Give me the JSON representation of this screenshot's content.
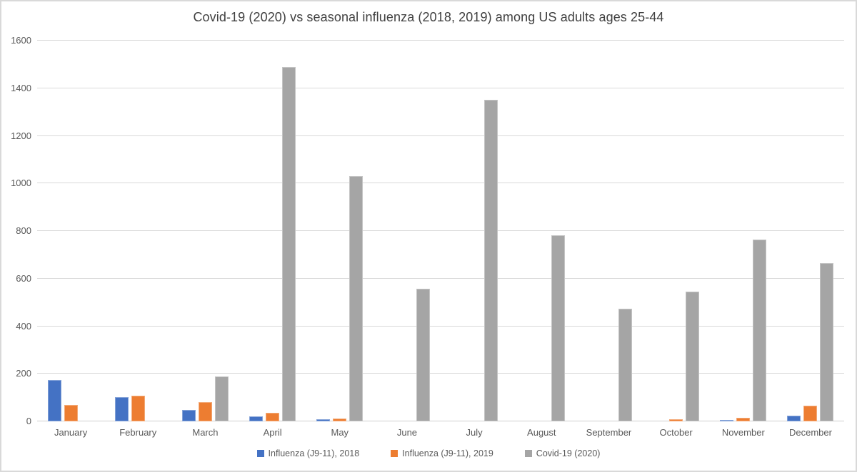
{
  "title": "Covid-19 (2020) vs seasonal influenza (2018, 2019) among US adults ages 25-44",
  "colors": {
    "series_2018": "#4472C4",
    "series_2019": "#ED7D31",
    "series_2020": "#A5A5A5",
    "gridline": "#D9D9D9",
    "axis_text": "#595959",
    "title_text": "#404040",
    "frame": "#D9D9D9"
  },
  "chart_data": {
    "type": "bar",
    "title": "Covid-19 (2020) vs seasonal influenza (2018, 2019) among US adults ages 25-44",
    "categories": [
      "January",
      "February",
      "March",
      "April",
      "May",
      "June",
      "July",
      "August",
      "September",
      "October",
      "November",
      "December"
    ],
    "series": [
      {
        "name": "Influenza (J9-11), 2018",
        "color": "#4472C4",
        "values": [
          175,
          103,
          47,
          20,
          8,
          0,
          0,
          0,
          0,
          0,
          5,
          24
        ]
      },
      {
        "name": "Influenza (J9-11), 2019",
        "color": "#ED7D31",
        "values": [
          70,
          107,
          82,
          35,
          12,
          0,
          0,
          0,
          0,
          10,
          15,
          66
        ]
      },
      {
        "name": "Covid-19 (2020)",
        "color": "#A5A5A5",
        "values": [
          0,
          0,
          190,
          1490,
          1030,
          556,
          1350,
          782,
          474,
          544,
          765,
          666
        ]
      }
    ],
    "xlabel": "",
    "ylabel": "",
    "ylim": [
      0,
      1600
    ],
    "ytick_labels": [
      "0",
      "200",
      "400",
      "600",
      "800",
      "1000",
      "1200",
      "1400",
      "1600"
    ],
    "grid": true,
    "legend_position": "bottom"
  }
}
